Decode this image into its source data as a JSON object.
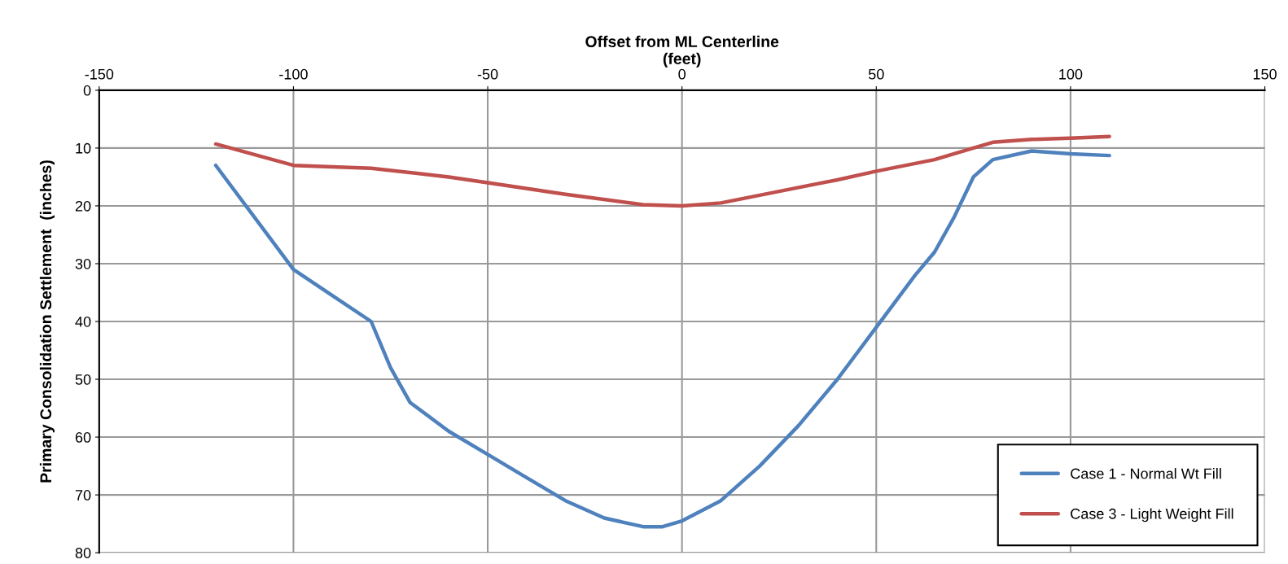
{
  "chart_data": {
    "type": "line",
    "xlabel": "Offset from ML Centerline\n(feet)",
    "ylabel": "Primary Consolidation Settlement  (inches)",
    "xlim": [
      -150,
      150
    ],
    "xticks": [
      -150,
      -100,
      -50,
      0,
      50,
      100,
      150
    ],
    "ylim": [
      80,
      0
    ],
    "yticks": [
      0,
      10,
      20,
      30,
      40,
      50,
      60,
      70,
      80
    ],
    "grid": true,
    "legend": "bottom right",
    "marker": "none",
    "line_style": "solid",
    "series": [
      {
        "name": "Case 1 - Normal Wt Fill",
        "color": "#4f81bd",
        "x": [
          -120,
          -100,
          -90,
          -80,
          -75,
          -70,
          -60,
          -50,
          -40,
          -30,
          -20,
          -10,
          -5,
          0,
          10,
          20,
          30,
          40,
          50,
          60,
          65,
          70,
          75,
          80,
          90,
          100,
          110
        ],
        "values": [
          13,
          31,
          35.5,
          40,
          48,
          54,
          59,
          63,
          67,
          71,
          74,
          75.5,
          75.5,
          74.5,
          71,
          65,
          58,
          50,
          41,
          32,
          28,
          22,
          15,
          12,
          10.5,
          11,
          11.3
        ]
      },
      {
        "name": "Case 3 - Light Weight Fill",
        "color": "#c0504d",
        "x": [
          -120,
          -100,
          -80,
          -60,
          -50,
          -30,
          -10,
          0,
          10,
          25,
          40,
          50,
          65,
          75,
          80,
          90,
          100,
          110
        ],
        "values": [
          9.3,
          13,
          13.5,
          15,
          16,
          18,
          19.8,
          20,
          19.5,
          17.5,
          15.5,
          14,
          12,
          10,
          9,
          8.5,
          8.3,
          8
        ]
      }
    ]
  }
}
